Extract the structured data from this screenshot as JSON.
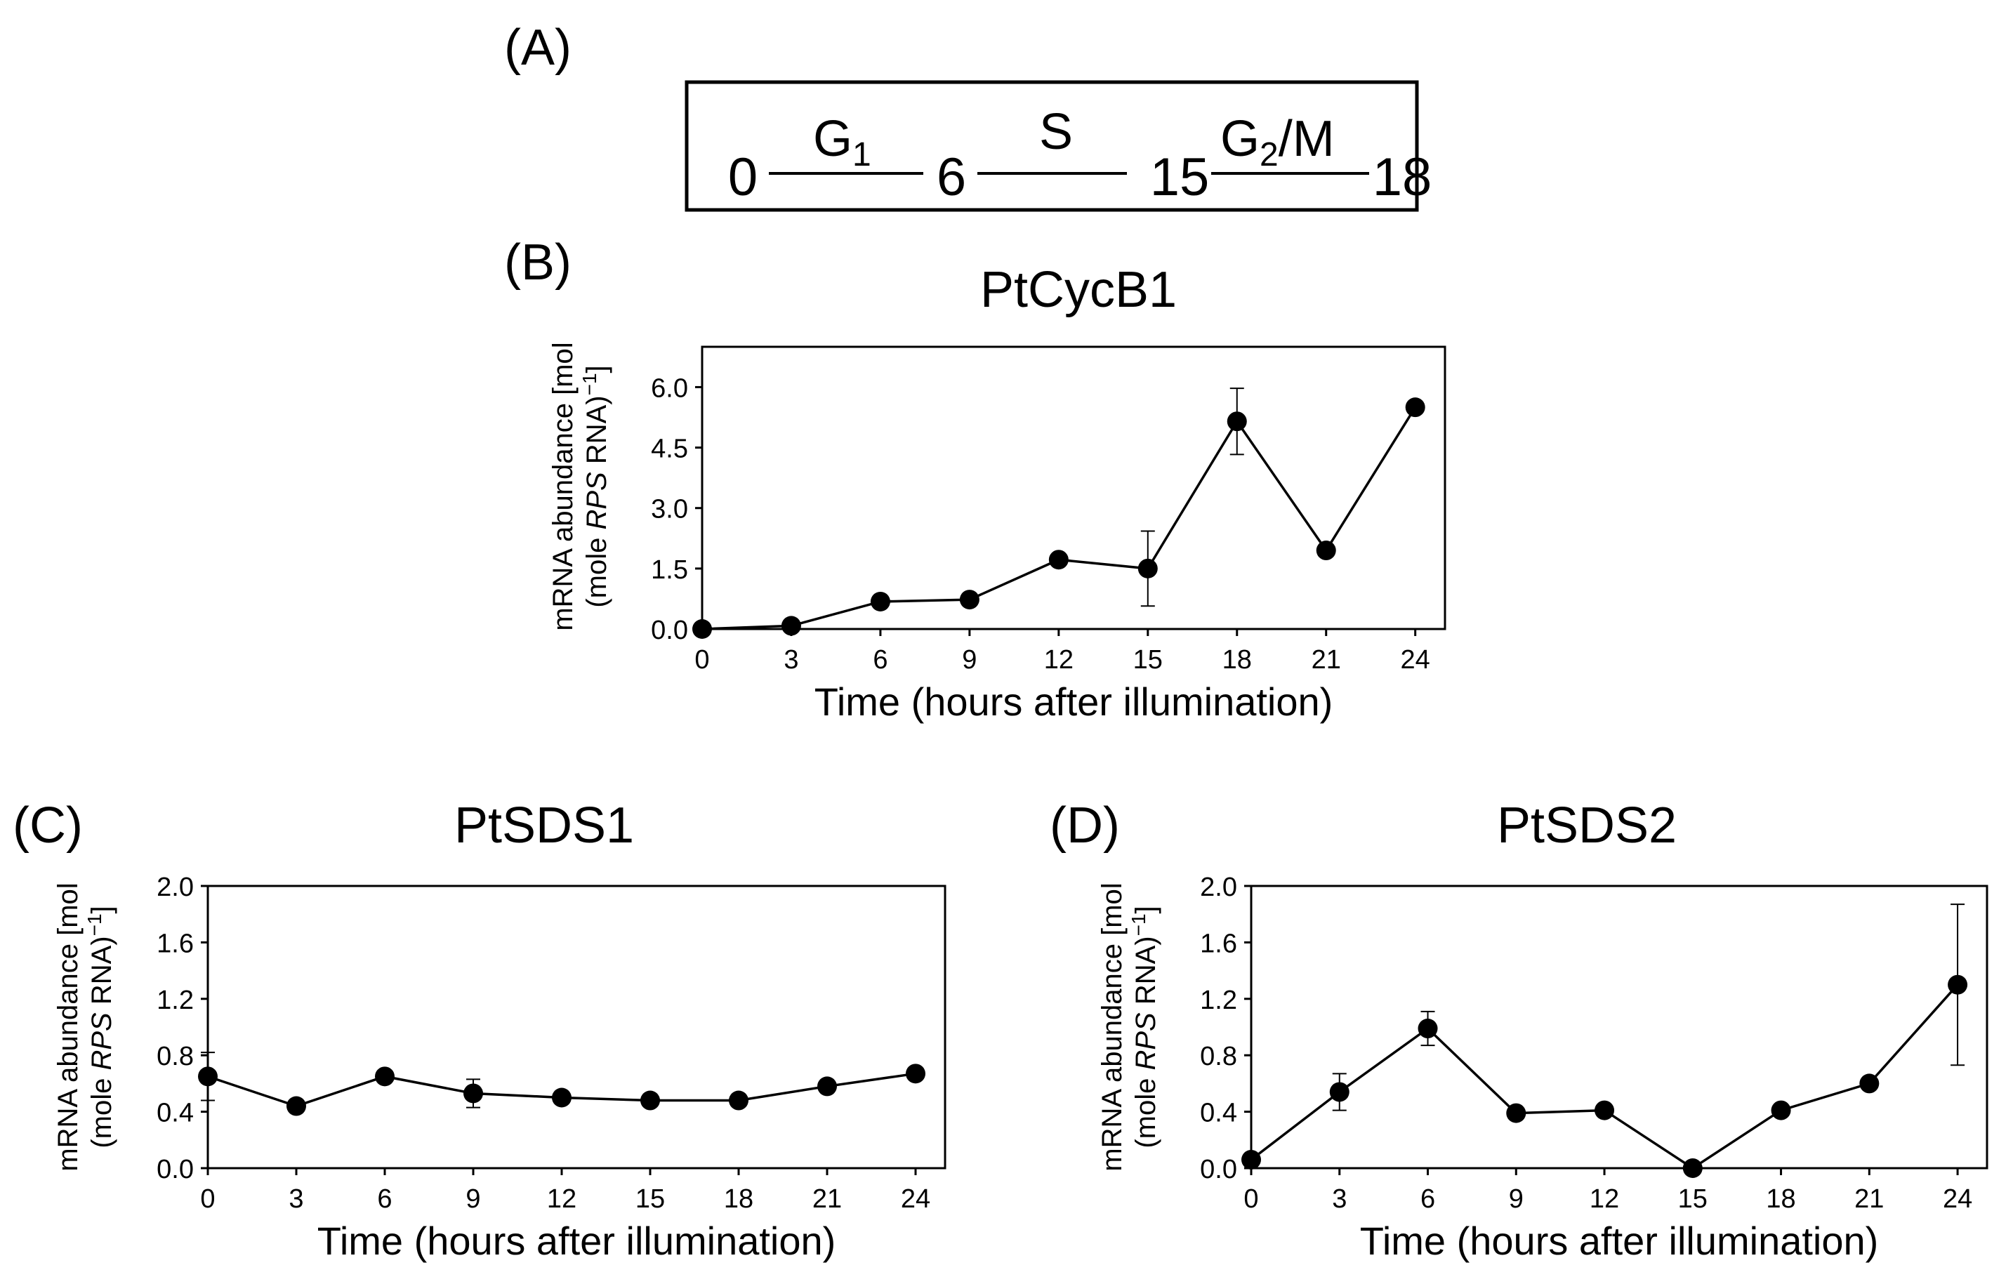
{
  "panel_a": {
    "label": "(A)",
    "phases": [
      "G1",
      "S",
      "G2/M"
    ],
    "boundaries": [
      "0",
      "6",
      "15",
      "18"
    ]
  },
  "chart_data": [
    {
      "panel": "(B)",
      "type": "line",
      "title": "PtCycB1",
      "xlabel": "Time (hours after illumination)",
      "ylabel_line1": "mRNA abundance [mol",
      "ylabel_line2_pre": "(mole ",
      "ylabel_line2_italic": "RPS",
      "ylabel_line2_post": " RNA)",
      "ylabel_sup": "−1",
      "ylabel_tail": "]",
      "x": [
        0,
        3,
        6,
        9,
        12,
        15,
        18,
        21,
        24
      ],
      "xticks": [
        "0",
        "3",
        "6",
        "9",
        "12",
        "15",
        "18",
        "21",
        "24"
      ],
      "xlim": [
        0,
        25
      ],
      "yticks": [
        "0.0",
        "1.5",
        "3.0",
        "4.5",
        "6.0"
      ],
      "ylim": [
        0,
        7
      ],
      "series": [
        {
          "name": "PtCycB1",
          "values": [
            0.0,
            0.08,
            0.68,
            0.73,
            1.72,
            1.5,
            5.15,
            1.95,
            5.5
          ],
          "error": [
            0,
            0,
            0,
            0,
            0,
            0.93,
            0.82,
            0,
            0
          ]
        }
      ]
    },
    {
      "panel": "(C)",
      "type": "line",
      "title": "PtSDS1",
      "xlabel": "Time (hours after illumination)",
      "ylabel_line1": "mRNA abundance [mol",
      "ylabel_line2_pre": "(mole ",
      "ylabel_line2_italic": "RPS",
      "ylabel_line2_post": " RNA)",
      "ylabel_sup": "−1",
      "ylabel_tail": "]",
      "x": [
        0,
        3,
        6,
        9,
        12,
        15,
        18,
        21,
        24
      ],
      "xticks": [
        "0",
        "3",
        "6",
        "9",
        "12",
        "15",
        "18",
        "21",
        "24"
      ],
      "xlim": [
        0,
        25
      ],
      "yticks": [
        "0.0",
        "0.4",
        "0.8",
        "1.2",
        "1.6",
        "2.0"
      ],
      "ylim": [
        0,
        2.0
      ],
      "series": [
        {
          "name": "PtSDS1",
          "values": [
            0.65,
            0.44,
            0.65,
            0.53,
            0.5,
            0.48,
            0.48,
            0.58,
            0.67
          ],
          "error": [
            0.17,
            0,
            0,
            0.1,
            0,
            0,
            0,
            0,
            0
          ]
        }
      ]
    },
    {
      "panel": "(D)",
      "type": "line",
      "title": "PtSDS2",
      "xlabel": "Time (hours after illumination)",
      "ylabel_line1": "mRNA abundance [mol",
      "ylabel_line2_pre": "(mole ",
      "ylabel_line2_italic": "RPS",
      "ylabel_line2_post": " RNA)",
      "ylabel_sup": "−1",
      "ylabel_tail": "]",
      "x": [
        0,
        3,
        6,
        9,
        12,
        15,
        18,
        21,
        24
      ],
      "xticks": [
        "0",
        "3",
        "6",
        "9",
        "12",
        "15",
        "18",
        "21",
        "24"
      ],
      "xlim": [
        0,
        25
      ],
      "yticks": [
        "0.0",
        "0.4",
        "0.8",
        "1.2",
        "1.6",
        "2.0"
      ],
      "ylim": [
        0,
        2.0
      ],
      "series": [
        {
          "name": "PtSDS2",
          "values": [
            0.06,
            0.54,
            0.99,
            0.39,
            0.41,
            0.0,
            0.41,
            0.6,
            1.3
          ],
          "error": [
            0,
            0.13,
            0.12,
            0,
            0,
            0,
            0,
            0,
            0.57
          ]
        }
      ]
    }
  ]
}
